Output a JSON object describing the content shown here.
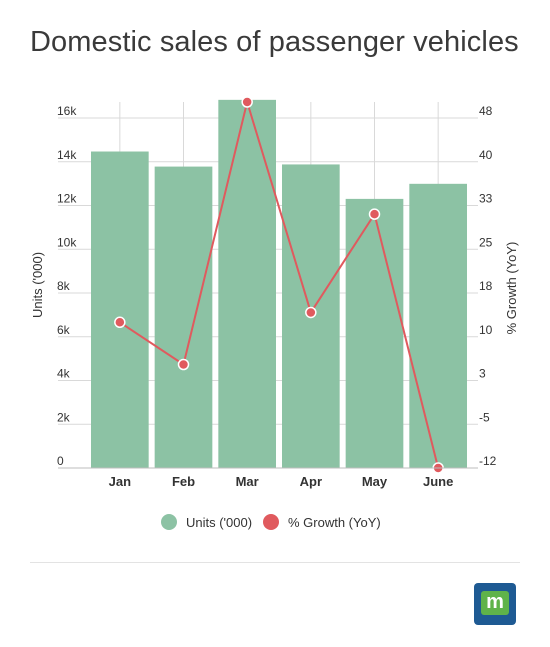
{
  "title": "Domestic sales of passenger vehicles",
  "chart_data": {
    "type": "bar",
    "categories": [
      "Jan",
      "Feb",
      "Mar",
      "Apr",
      "May",
      "June"
    ],
    "series": [
      {
        "name": "Units ('000)",
        "type": "bar",
        "axis": "left",
        "color": "#8cc2a4",
        "values": [
          14700,
          14000,
          17100,
          14100,
          12500,
          13200
        ]
      },
      {
        "name": "% Growth (YoY)",
        "type": "line",
        "axis": "right",
        "color": "#e05a5e",
        "values": [
          12.9,
          5.6,
          51.0,
          14.6,
          31.6,
          -12.3
        ]
      }
    ],
    "ylabel": "Units ('000)",
    "y2label": "% Growth (YoY)",
    "ylim": [
      0,
      17000
    ],
    "y_ticks": [
      "0",
      "2k",
      "4k",
      "6k",
      "8k",
      "10k",
      "12k",
      "14k",
      "16k"
    ],
    "y2lim": [
      -12.3,
      51.0
    ],
    "y2_ticks": [
      "-12",
      "-5",
      "3",
      "10",
      "18",
      "25",
      "33",
      "40",
      "48"
    ],
    "grid": true,
    "legend": "bottom-center"
  },
  "logo": {
    "letter": "m"
  }
}
